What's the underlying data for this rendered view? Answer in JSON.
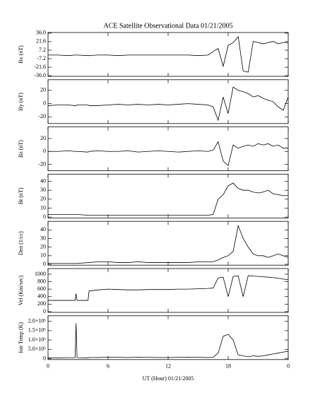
{
  "chart_data": [
    {
      "type": "line",
      "title": "ACE Satellite Observational Data   01/21/2005",
      "ylabel": "Bx (nT)",
      "x": [
        0,
        1,
        2,
        2.7,
        2.8,
        2.9,
        4,
        4.1,
        5,
        6,
        7,
        8,
        9,
        10,
        11,
        12,
        13,
        14,
        15,
        16,
        16.5,
        17,
        17.5,
        18,
        18.5,
        19,
        19.5,
        20,
        20.5,
        21,
        21.5,
        22,
        22.5,
        23,
        23.5,
        24
      ],
      "values": [
        -1,
        -1,
        -2,
        -1,
        -1,
        -1,
        -2,
        -2,
        -1,
        -1,
        -2,
        -1,
        -1,
        -1,
        -1,
        -1,
        -1,
        -1,
        -2,
        -1,
        5,
        10,
        -20,
        15,
        20,
        30,
        -28,
        -30,
        22,
        20,
        18,
        20,
        22,
        18,
        20,
        20
      ],
      "color": "#000000",
      "xlim": [
        0,
        24
      ],
      "ylim": [
        -37,
        37
      ],
      "yticks": [
        {
          "value": 36,
          "label": "36.0"
        },
        21.6,
        7.2,
        -7.2,
        -21.6,
        {
          "value": -36,
          "label": "-36.0"
        }
      ]
    },
    {
      "type": "line",
      "ylabel": "By (nT)",
      "x": [
        0,
        1,
        2,
        2.7,
        2.8,
        2.9,
        4,
        4.1,
        5,
        6,
        7,
        8,
        9,
        10,
        11,
        12,
        13,
        14,
        15,
        16,
        16.5,
        17,
        17.5,
        18,
        18.5,
        19,
        19.5,
        20,
        20.5,
        21,
        21.5,
        22,
        22.5,
        23,
        23.5,
        24
      ],
      "values": [
        -3,
        -2,
        -2,
        -3,
        -3,
        -2,
        -2,
        -3,
        -3,
        -2,
        -1,
        -2,
        -1,
        -2,
        -1,
        -2,
        -1,
        0,
        -1,
        -2,
        -5,
        -25,
        10,
        -15,
        25,
        20,
        18,
        15,
        10,
        12,
        8,
        5,
        3,
        -5,
        -10,
        10
      ],
      "color": "#000000",
      "xlim": [
        0,
        24
      ],
      "ylim": [
        -30,
        36
      ],
      "yticks": [
        20,
        0,
        -20
      ]
    },
    {
      "type": "line",
      "ylabel": "Bz (nT)",
      "x": [
        0,
        1,
        2,
        2.7,
        2.8,
        2.9,
        4,
        4.1,
        5,
        6,
        7,
        8,
        9,
        10,
        11,
        12,
        13,
        14,
        15,
        16,
        16.5,
        17,
        17.5,
        18,
        18.5,
        19,
        19.5,
        20,
        20.5,
        21,
        21.5,
        22,
        22.5,
        23,
        23.5,
        24
      ],
      "values": [
        0,
        0,
        1,
        0,
        0,
        0,
        -1,
        0,
        1,
        0,
        0,
        1,
        -1,
        0,
        1,
        0,
        -1,
        0,
        1,
        0,
        2,
        15,
        -15,
        -22,
        10,
        5,
        8,
        10,
        8,
        12,
        10,
        12,
        8,
        10,
        5,
        5
      ],
      "color": "#000000",
      "xlim": [
        0,
        24
      ],
      "ylim": [
        -30,
        38
      ],
      "yticks": [
        20,
        0,
        -20
      ]
    },
    {
      "type": "line",
      "ylabel": "Bt (nT)",
      "x": [
        0,
        1,
        2,
        2.7,
        2.8,
        2.9,
        4,
        4.1,
        5,
        6,
        7,
        8,
        9,
        10,
        11,
        12,
        13,
        14,
        15,
        16,
        16.5,
        17,
        17.5,
        18,
        18.5,
        19,
        19.5,
        20,
        20.5,
        21,
        21.5,
        22,
        22.5,
        23,
        23.5,
        24
      ],
      "values": [
        3,
        3,
        3,
        3,
        3,
        3,
        2,
        2,
        2,
        2,
        2,
        2,
        2,
        2,
        2,
        2,
        2,
        2,
        2,
        2,
        3,
        20,
        25,
        35,
        38,
        32,
        30,
        30,
        28,
        27,
        28,
        30,
        26,
        25,
        24,
        24
      ],
      "color": "#000000",
      "xlim": [
        0,
        24
      ],
      "ylim": [
        -1,
        48
      ],
      "yticks": [
        0,
        10,
        20,
        30,
        40
      ]
    },
    {
      "type": "line",
      "ylabel": "Den (1/cc)",
      "x": [
        0,
        1,
        2,
        2.7,
        2.8,
        2.9,
        4,
        4.1,
        5,
        6,
        7,
        8,
        9,
        10,
        11,
        12,
        13,
        14,
        15,
        16,
        16.5,
        17,
        17.5,
        18,
        18.5,
        19,
        19.5,
        20,
        20.5,
        21,
        21.5,
        22,
        22.5,
        23,
        23.5,
        24
      ],
      "values": [
        1,
        1,
        1,
        1,
        1,
        1,
        2,
        2,
        3,
        3,
        2,
        2,
        3,
        2,
        2,
        2,
        2,
        2,
        3,
        3,
        3,
        5,
        8,
        10,
        15,
        45,
        30,
        20,
        12,
        10,
        10,
        8,
        10,
        12,
        10,
        8
      ],
      "color": "#000000",
      "xlim": [
        0,
        24
      ],
      "ylim": [
        -1,
        50
      ],
      "yticks": [
        0,
        10,
        20,
        30,
        40
      ]
    },
    {
      "type": "line",
      "ylabel": "Vel (Km/sec)",
      "x": [
        0,
        1,
        2,
        2.7,
        2.8,
        2.9,
        4,
        4.1,
        5,
        6,
        7,
        8,
        9,
        10,
        11,
        12,
        13,
        14,
        15,
        16,
        16.5,
        17,
        17.5,
        18,
        18.5,
        19,
        19.5,
        20,
        20.5,
        21,
        21.5,
        22,
        22.5,
        23,
        23.5,
        24
      ],
      "values": [
        300,
        300,
        300,
        300,
        480,
        300,
        300,
        550,
        580,
        600,
        590,
        580,
        580,
        590,
        590,
        590,
        600,
        600,
        610,
        620,
        630,
        900,
        920,
        400,
        940,
        950,
        400,
        960,
        950,
        940,
        930,
        920,
        910,
        890,
        870,
        850
      ],
      "color": "#000000",
      "xlim": [
        0,
        24
      ],
      "ylim": [
        -20,
        1150
      ],
      "yticks": [
        0,
        200,
        400,
        600,
        800,
        1000
      ]
    },
    {
      "type": "line",
      "ylabel": "Ion Temp (K)",
      "x": [
        0,
        1,
        2,
        2.7,
        2.8,
        2.9,
        4,
        4.1,
        5,
        6,
        7,
        8,
        9,
        10,
        11,
        12,
        13,
        14,
        15,
        16,
        16.5,
        17,
        17.5,
        18,
        18.5,
        19,
        19.5,
        20,
        20.5,
        21,
        21.5,
        22,
        22.5,
        23,
        23.5,
        24
      ],
      "values": [
        50000,
        40000,
        50000,
        50000,
        1900000,
        50000,
        40000,
        60000,
        60000,
        80000,
        70000,
        60000,
        80000,
        70000,
        60000,
        60000,
        70000,
        80000,
        70000,
        60000,
        80000,
        300000,
        1200000,
        1300000,
        1000000,
        200000,
        150000,
        100000,
        150000,
        120000,
        150000,
        200000,
        250000,
        300000,
        350000,
        400000
      ],
      "color": "#000000",
      "xlim": [
        0,
        24
      ],
      "ylim": [
        -50000,
        2300000
      ],
      "yticks": [
        0,
        {
          "value": 500000,
          "label": "5.0×10⁵"
        },
        {
          "value": 1000000,
          "label": "1.0×10⁶"
        },
        {
          "value": 1500000,
          "label": "1.5×10⁶"
        },
        {
          "value": 2000000,
          "label": "2.0×10⁶"
        }
      ],
      "xlabel": "UT (Hour)  01/21/2005",
      "xticks": [
        0,
        6,
        12,
        18,
        {
          "value": 24,
          "label": "0"
        }
      ]
    }
  ]
}
